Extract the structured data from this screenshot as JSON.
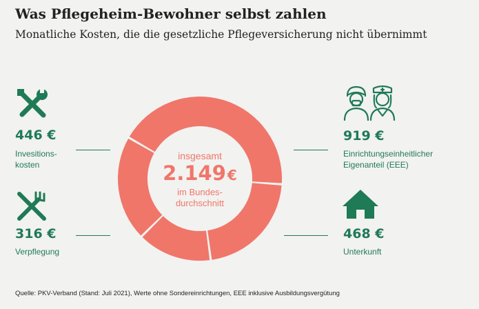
{
  "title": "Was Pflegeheim-Bewohner selbst zahlen",
  "subtitle": "Monatliche Kosten, die die gesetzliche Pflegeversicherung nicht übernimmt",
  "center": {
    "top_label": "insgesamt",
    "total_value": "2.149",
    "total_unit": "€",
    "bottom_line1": "im Bundes-",
    "bottom_line2": "durchschnitt"
  },
  "items": [
    {
      "value": "446 €",
      "label_line1": "Invesitions-",
      "label_line2": "kosten",
      "icon": "tools-icon"
    },
    {
      "value": "316 €",
      "label_line1": "Verpflegung",
      "label_line2": "",
      "icon": "fork-knife-icon"
    },
    {
      "value": "919 €",
      "label_line1": "Einrichtungseinheitlicher",
      "label_line2": "Eigenanteil (EEE)",
      "icon": "caregivers-icon"
    },
    {
      "value": "468 €",
      "label_line1": "Unterkunft",
      "label_line2": "",
      "icon": "house-icon"
    }
  ],
  "source": "Quelle: PKV-Verband (Stand: Juli 2021), Werte ohne Sondereinrichtungen, EEE inklusive Ausbildungsvergütung",
  "colors": {
    "ring": "#f0766a",
    "accent": "#1f7a56",
    "background": "#f2f2f0"
  },
  "chart_data": {
    "type": "pie",
    "donut": true,
    "title": "Was Pflegeheim-Bewohner selbst zahlen",
    "subtitle": "Monatliche Kosten, die die gesetzliche Pflegeversicherung nicht übernimmt",
    "unit": "€",
    "total": 2149,
    "categories": [
      "Einrichtungseinheitlicher Eigenanteil (EEE)",
      "Unterkunft",
      "Verpflegung",
      "Invesitionskosten"
    ],
    "values": [
      919,
      468,
      316,
      446
    ]
  }
}
